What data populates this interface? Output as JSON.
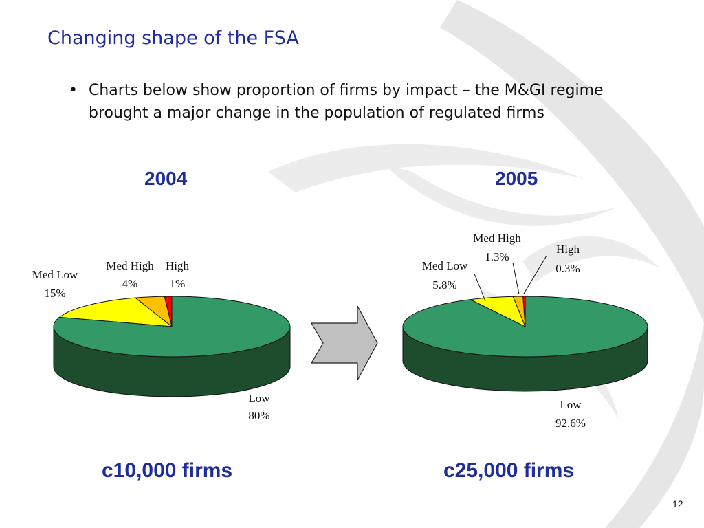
{
  "slide": {
    "title": "Changing shape of the FSA",
    "bullet": "Charts below show proportion of firms by impact – the M&GI regime brought a major change in the population of regulated firms",
    "page_number": "12"
  },
  "panels": [
    {
      "year": "2004",
      "firms": "c10,000 firms"
    },
    {
      "year": "2005",
      "firms": "c25,000 firms"
    }
  ],
  "colors": {
    "title": "#1f2d9b",
    "low_top": "#339966",
    "low_side": "#1d4d2c",
    "med_low": "#ffff00",
    "med_high": "#ffc000",
    "high": "#ff0000",
    "arrow": "#c0c0c0",
    "watermark": "#e4e4e4"
  },
  "chart_data": [
    {
      "type": "pie",
      "title": "2004",
      "categories": [
        "Low",
        "Med Low",
        "Med High",
        "High"
      ],
      "values": [
        80,
        15,
        4,
        1
      ],
      "labels": [
        "80%",
        "15%",
        "4%",
        "1%"
      ],
      "caption": "c10,000 firms"
    },
    {
      "type": "pie",
      "title": "2005",
      "categories": [
        "Low",
        "Med Low",
        "Med High",
        "High"
      ],
      "values": [
        92.6,
        5.8,
        1.3,
        0.3
      ],
      "labels": [
        "92.6%",
        "5.8%",
        "1.3%",
        "0.3%"
      ],
      "caption": "c25,000 firms"
    }
  ]
}
